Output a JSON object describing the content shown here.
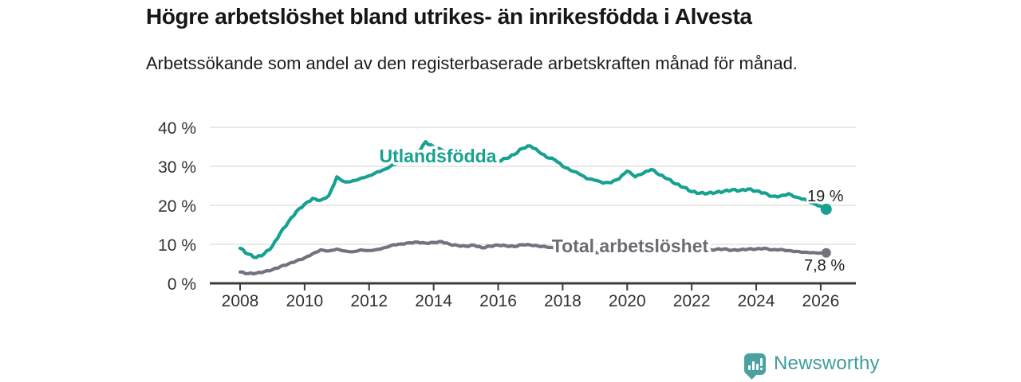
{
  "header": {
    "title": "Högre arbetslöshet bland utrikes- än inrikesfödda i Alvesta",
    "subtitle": "Arbetssökande som andel av den registerbaserade arbetskraften månad för månad."
  },
  "footer": {
    "brand": "Newsworthy"
  },
  "colors": {
    "accent_teal": "#16A191",
    "accent_gray": "#757280",
    "label_gray": "#6D6A72",
    "axis": "#3b3b3b",
    "tick_text": "#333333",
    "gridline": "#dcdcdc",
    "value_text": "#1f1f1f",
    "logo_teal": "#4BA1A1"
  },
  "chart_data": {
    "type": "line",
    "title": "Högre arbetslöshet bland utrikes- än inrikesfödda i Alvesta",
    "subtitle": "Arbetssökande som andel av den registerbaserade arbetskraften månad för månad.",
    "unit": "%",
    "xlabel": "",
    "ylabel": "",
    "x_ticks": [
      2008,
      2010,
      2012,
      2014,
      2016,
      2018,
      2020,
      2022,
      2024,
      2026
    ],
    "y_ticks": [
      0,
      10,
      20,
      30,
      40
    ],
    "y_tick_suffix": " %",
    "x_range": [
      2007.05,
      2027.1
    ],
    "ylim": [
      0,
      40
    ],
    "grid": "horizontal",
    "legend_position": "inline-labels-on-lines",
    "series": [
      {
        "name": "Utlandsfödda",
        "color": "#16A191",
        "label_color": "#16A191",
        "end_label": "19 %",
        "end_value": 19.0,
        "x_start": 2008.0,
        "x_step_years": 0.25,
        "x_last": 2026.17,
        "values": [
          9.0,
          7.5,
          6.6,
          7.6,
          9.5,
          13.0,
          15.8,
          18.5,
          20.3,
          21.8,
          21.3,
          22.5,
          27.3,
          26.0,
          26.3,
          27.0,
          27.6,
          28.6,
          29.3,
          30.5,
          31.3,
          32.3,
          33.4,
          36.3,
          35.0,
          34.2,
          33.6,
          33.2,
          33.0,
          32.6,
          32.2,
          31.9,
          31.3,
          32.0,
          33.0,
          34.6,
          35.2,
          33.8,
          32.3,
          31.7,
          30.0,
          28.9,
          28.1,
          26.8,
          26.4,
          25.7,
          25.8,
          26.8,
          28.8,
          27.3,
          28.2,
          29.2,
          27.8,
          26.8,
          25.5,
          24.6,
          23.5,
          23.1,
          23.1,
          23.3,
          23.6,
          24.0,
          23.8,
          24.2,
          23.7,
          23.2,
          22.3,
          22.4,
          23.0,
          22.1,
          21.6,
          20.6,
          19.8,
          19.0
        ]
      },
      {
        "name": "Total arbetslöshet",
        "color": "#757280",
        "label_color": "#6D6A72",
        "end_label": "7,8 %",
        "end_value": 7.8,
        "x_start": 2008.0,
        "x_step_years": 0.25,
        "x_last": 2026.17,
        "values": [
          2.9,
          2.5,
          2.6,
          3.0,
          3.5,
          4.3,
          5.0,
          5.8,
          6.5,
          7.6,
          8.6,
          8.3,
          8.8,
          8.3,
          8.1,
          8.6,
          8.4,
          8.7,
          9.2,
          9.9,
          10.1,
          10.4,
          10.6,
          10.3,
          10.5,
          10.7,
          10.0,
          9.7,
          9.5,
          9.8,
          9.1,
          9.5,
          9.8,
          9.6,
          9.4,
          9.9,
          9.8,
          9.5,
          9.3,
          9.0,
          8.7,
          8.4,
          8.2,
          8.0,
          7.9,
          7.8,
          8.0,
          8.3,
          8.6,
          9.2,
          9.5,
          9.3,
          9.0,
          8.8,
          8.6,
          8.5,
          8.4,
          8.3,
          8.4,
          8.7,
          8.8,
          8.5,
          8.6,
          8.8,
          8.8,
          9.0,
          8.6,
          8.7,
          8.4,
          8.2,
          8.0,
          7.9,
          7.8,
          7.8
        ]
      }
    ]
  }
}
